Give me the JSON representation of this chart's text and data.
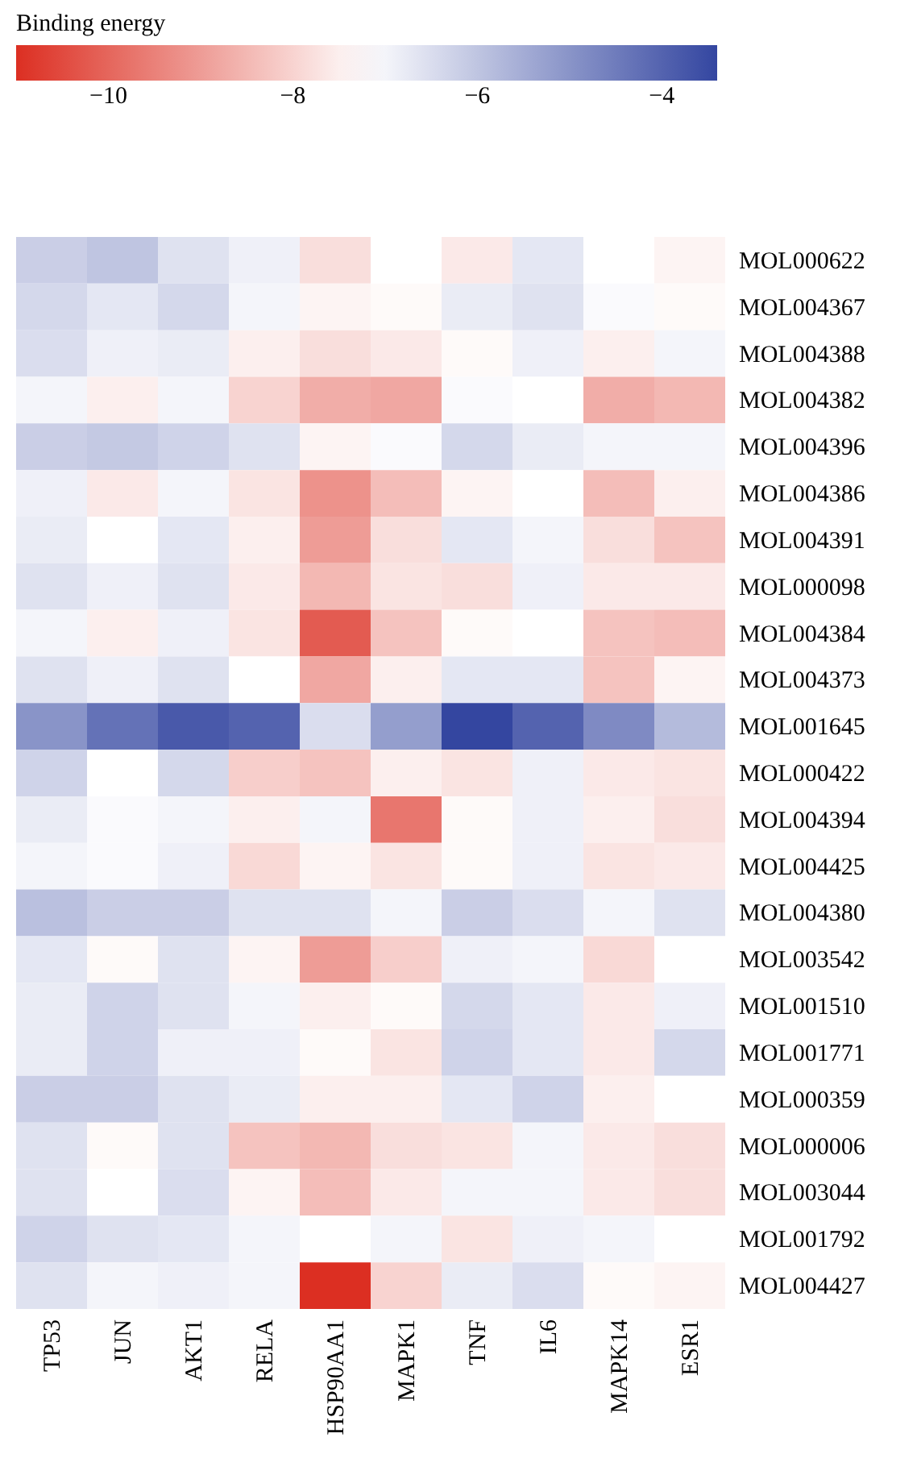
{
  "chart_data": {
    "type": "heatmap",
    "clabel": "Binding energy",
    "clim": [
      -11,
      -3.4
    ],
    "cticks": [
      -10,
      -8,
      -6,
      -4
    ],
    "categories": [
      "TP53",
      "JUN",
      "AKT1",
      "RELA",
      "HSP90AA1",
      "MAPK1",
      "TNF",
      "IL6",
      "MAPK14",
      "ESR1"
    ],
    "y_categories": [
      "MOL000622",
      "MOL004367",
      "MOL004388",
      "MOL004382",
      "MOL004396",
      "MOL004386",
      "MOL004391",
      "MOL000098",
      "MOL004384",
      "MOL004373",
      "MOL001645",
      "MOL000422",
      "MOL004394",
      "MOL004425",
      "MOL004380",
      "MOL003542",
      "MOL001510",
      "MOL001771",
      "MOL000359",
      "MOL000006",
      "MOL003044",
      "MOL001792",
      "MOL004427"
    ],
    "cells": [
      [
        -6.2,
        -6.0,
        -6.6,
        -6.9,
        -7.8,
        -7.2,
        -7.6,
        -6.7,
        -7.2,
        -7.4
      ],
      [
        -6.4,
        -6.7,
        -6.4,
        -7.0,
        -7.4,
        -7.3,
        -6.8,
        -6.6,
        -7.1,
        -7.3
      ],
      [
        -6.5,
        -6.9,
        -6.8,
        -7.5,
        -7.8,
        -7.6,
        -7.3,
        -6.9,
        -7.5,
        -7.0
      ],
      [
        -7.0,
        -7.5,
        -7.0,
        -8.0,
        -8.7,
        -8.8,
        -7.1,
        -7.2,
        -8.7,
        -8.5
      ],
      [
        -6.2,
        -6.1,
        -6.3,
        -6.6,
        -7.4,
        -7.1,
        -6.4,
        -6.8,
        -7.0,
        -7.0
      ],
      [
        -6.9,
        -7.6,
        -7.0,
        -7.7,
        -9.2,
        -8.4,
        -7.4,
        -7.2,
        -8.4,
        -7.5
      ],
      [
        -6.8,
        -7.2,
        -6.7,
        -7.5,
        -9.0,
        -7.8,
        -6.7,
        -7.0,
        -7.8,
        -8.3
      ],
      [
        -6.6,
        -6.9,
        -6.6,
        -7.6,
        -8.5,
        -7.7,
        -7.8,
        -6.9,
        -7.6,
        -7.6
      ],
      [
        -7.0,
        -7.5,
        -6.9,
        -7.7,
        -10.2,
        -8.3,
        -7.3,
        -7.2,
        -8.3,
        -8.4
      ],
      [
        -6.6,
        -6.9,
        -6.6,
        -7.2,
        -8.8,
        -7.5,
        -6.7,
        -6.7,
        -8.3,
        -7.4
      ],
      [
        -5.0,
        -4.3,
        -3.8,
        -4.0,
        -6.5,
        -5.2,
        -3.4,
        -4.0,
        -4.8,
        -5.8
      ],
      [
        -6.3,
        -7.2,
        -6.4,
        -8.1,
        -8.3,
        -7.5,
        -7.7,
        -6.9,
        -7.6,
        -7.7
      ],
      [
        -6.8,
        -7.1,
        -7.0,
        -7.5,
        -7.0,
        -9.7,
        -7.3,
        -6.9,
        -7.5,
        -7.8
      ],
      [
        -7.0,
        -7.1,
        -6.9,
        -7.9,
        -7.4,
        -7.7,
        -7.3,
        -6.9,
        -7.7,
        -7.6
      ],
      [
        -5.9,
        -6.2,
        -6.2,
        -6.6,
        -6.6,
        -7.0,
        -6.2,
        -6.5,
        -7.0,
        -6.6
      ],
      [
        -6.7,
        -7.3,
        -6.6,
        -7.4,
        -9.0,
        -8.1,
        -6.9,
        -7.0,
        -7.9,
        -7.2
      ],
      [
        -6.8,
        -6.3,
        -6.6,
        -7.0,
        -7.5,
        -7.3,
        -6.4,
        -6.7,
        -7.6,
        -6.9
      ],
      [
        -6.8,
        -6.3,
        -6.9,
        -6.9,
        -7.3,
        -7.7,
        -6.3,
        -6.7,
        -7.6,
        -6.4
      ],
      [
        -6.2,
        -6.2,
        -6.6,
        -6.8,
        -7.5,
        -7.5,
        -6.7,
        -6.3,
        -7.5,
        -7.2
      ],
      [
        -6.6,
        -7.3,
        -6.6,
        -8.3,
        -8.5,
        -7.8,
        -7.7,
        -7.0,
        -7.6,
        -7.8
      ],
      [
        -6.6,
        -7.2,
        -6.5,
        -7.4,
        -8.4,
        -7.6,
        -7.0,
        -7.0,
        -7.6,
        -7.8
      ],
      [
        -6.3,
        -6.6,
        -6.7,
        -7.0,
        -7.2,
        -7.0,
        -7.7,
        -6.9,
        -7.0,
        -7.2
      ],
      [
        -6.6,
        -7.0,
        -6.9,
        -7.0,
        -11.0,
        -8.0,
        -6.8,
        -6.5,
        -7.3,
        -7.4
      ]
    ]
  }
}
